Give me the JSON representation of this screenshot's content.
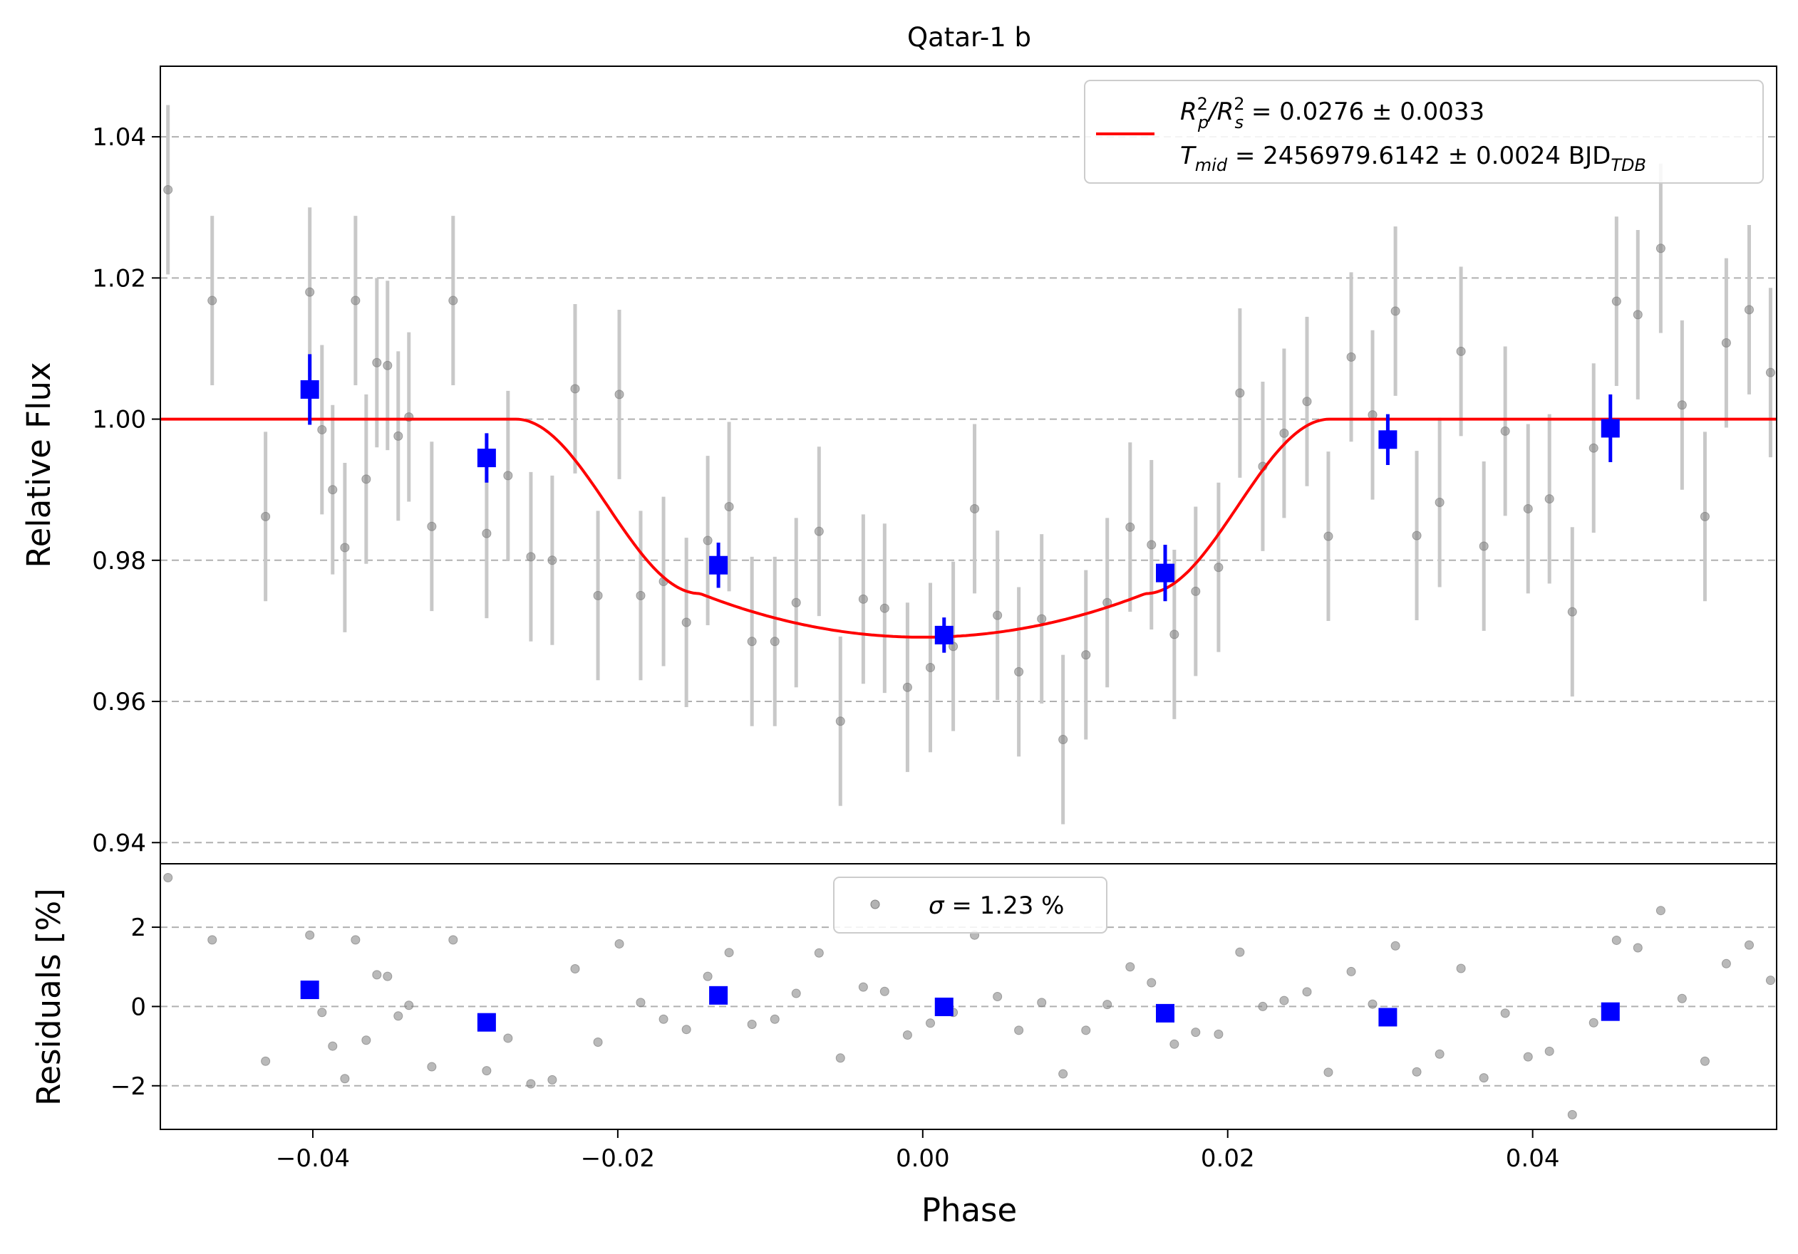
{
  "chart_data": [
    {
      "type": "scatter",
      "panel": "transit",
      "title": "Qatar-1 b",
      "xlabel": "",
      "ylabel": "Relative Flux",
      "xlim": [
        -0.05,
        0.056
      ],
      "ylim": [
        0.937,
        1.05
      ],
      "grid": "horizontal dashed",
      "yticks": [
        "0.94",
        "0.96",
        "0.98",
        "1.00",
        "1.02",
        "1.04"
      ],
      "legend": {
        "placement": "upper right",
        "line1": {
          "main": "R",
          "sub1": "p",
          "sup1": "2",
          "sep": "/R",
          "sub2": "s",
          "sup2": "2",
          "value": " = 0.0276 ± 0.0033"
        },
        "line2": {
          "main": "T",
          "sub": "mid",
          "value": " = 2456979.6142 ± 0.0024 BJD",
          "unit_sub": "TDB"
        }
      },
      "colors": {
        "raw": "#808080",
        "rawerr": "#c8c8c8",
        "binned": "#0000ff",
        "model": "#ff0000"
      },
      "raw_points": {
        "x": [
          -0.0495,
          -0.0466,
          -0.0431,
          -0.0402,
          -0.0394,
          -0.0387,
          -0.0379,
          -0.0372,
          -0.0365,
          -0.0358,
          -0.0351,
          -0.0344,
          -0.0337,
          -0.0322,
          -0.0308,
          -0.0286,
          -0.0272,
          -0.0257,
          -0.0243,
          -0.0228,
          -0.0213,
          -0.0199,
          -0.0185,
          -0.017,
          -0.0155,
          -0.0141,
          -0.0127,
          -0.0112,
          -0.0097,
          -0.0083,
          -0.0068,
          -0.0054,
          -0.0039,
          -0.0025,
          -0.001,
          0.0005,
          0.002,
          0.0034,
          0.0049,
          0.0063,
          0.0078,
          0.0092,
          0.0107,
          0.0121,
          0.0136,
          0.015,
          0.0165,
          0.0179,
          0.0194,
          0.0208,
          0.0223,
          0.0237,
          0.0252,
          0.0266,
          0.0281,
          0.0295,
          0.031,
          0.0324,
          0.0339,
          0.0353,
          0.0368,
          0.0382,
          0.0397,
          0.0411,
          0.0426,
          0.044,
          0.0455,
          0.0469,
          0.0484,
          0.0498,
          0.0513,
          0.0527,
          0.0542,
          0.0556
        ],
        "y": [
          1.0325,
          1.0168,
          0.9862,
          1.018,
          0.9985,
          0.99,
          0.9818,
          1.0168,
          0.9915,
          1.008,
          1.0076,
          0.9976,
          1.0003,
          0.9848,
          1.0168,
          0.9838,
          0.992,
          0.9805,
          0.98,
          1.0043,
          0.975,
          1.0035,
          0.975,
          0.977,
          0.9712,
          0.9828,
          0.9876,
          0.9685,
          0.9685,
          0.974,
          0.9841,
          0.9572,
          0.9745,
          0.9732,
          0.962,
          0.9648,
          0.9678,
          0.9873,
          0.9722,
          0.9642,
          0.9717,
          0.9546,
          0.9666,
          0.974,
          0.9847,
          0.9822,
          0.9695,
          0.9756,
          0.979,
          1.0037,
          0.9933,
          0.998,
          1.0025,
          0.9834,
          1.0088,
          1.0006,
          1.0153,
          0.9835,
          0.9882,
          1.0096,
          0.982,
          0.9983,
          0.9873,
          0.9887,
          0.9727,
          0.9959,
          1.0167,
          1.0148,
          1.0242,
          1.002,
          0.9862,
          1.0108,
          1.0155,
          1.0066
        ],
        "err": 0.012
      },
      "binned_points": {
        "x": [
          -0.0402,
          -0.0286,
          -0.0134,
          0.0014,
          0.0159,
          0.0305,
          0.0451
        ],
        "y": [
          1.0042,
          0.9945,
          0.9793,
          0.9694,
          0.9782,
          0.9971,
          0.9987
        ],
        "err": [
          0.005,
          0.0035,
          0.0032,
          0.0025,
          0.004,
          0.0036,
          0.0048
        ]
      },
      "model": {
        "depth": 0.0309,
        "contact_outer": 0.0267,
        "contact_inner": 0.0146,
        "limb_k": 0.2
      }
    },
    {
      "type": "scatter",
      "panel": "residuals",
      "xlabel": "Phase",
      "ylabel": "Residuals [%]",
      "xlim": [
        -0.05,
        0.056
      ],
      "ylim": [
        -3.1,
        3.6
      ],
      "grid": "horizontal dashed",
      "xticks": [
        "−0.04",
        "−0.02",
        "0.00",
        "0.02",
        "0.04"
      ],
      "yticks": [
        "−2",
        "0",
        "2"
      ],
      "legend": {
        "placement": "upper center",
        "label": " = 1.23 %",
        "symbol": "σ"
      },
      "raw_y": [
        3.25,
        1.68,
        -1.38,
        1.8,
        -0.15,
        -1.0,
        -1.82,
        1.68,
        -0.85,
        0.8,
        0.76,
        -0.24,
        0.03,
        -1.52,
        1.68,
        -1.62,
        -0.8,
        -1.95,
        -1.85,
        0.95,
        -0.9,
        1.58,
        0.1,
        -0.32,
        -0.58,
        0.76,
        1.36,
        -0.45,
        -0.32,
        0.33,
        1.35,
        -1.3,
        0.49,
        0.38,
        -0.72,
        -0.42,
        -0.15,
        1.8,
        0.25,
        -0.6,
        0.1,
        -1.7,
        -0.6,
        0.05,
        1.0,
        0.6,
        -0.95,
        -0.65,
        -0.7,
        1.37,
        0.0,
        0.15,
        0.37,
        -1.66,
        0.88,
        0.06,
        1.53,
        -1.65,
        -1.2,
        0.96,
        -1.8,
        -0.17,
        -1.27,
        -1.13,
        -2.73,
        -0.41,
        1.67,
        1.48,
        2.42,
        0.2,
        -1.38,
        1.08,
        1.55,
        0.66
      ],
      "binned_y": [
        0.42,
        -0.4,
        0.28,
        -0.01,
        -0.17,
        -0.27,
        -0.13
      ]
    }
  ]
}
